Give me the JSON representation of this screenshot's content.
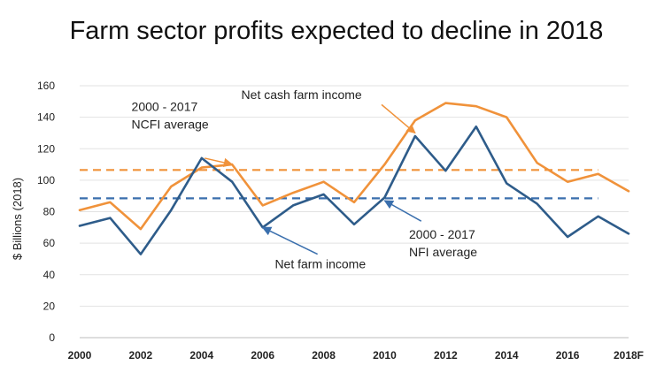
{
  "chart_data": {
    "type": "line",
    "title": "Farm sector profits expected to decline in 2018",
    "ylabel": "$ Billions (2018)",
    "xlabel": "",
    "ylim": [
      0,
      160
    ],
    "yticks": [
      0,
      20,
      40,
      60,
      80,
      100,
      120,
      140,
      160
    ],
    "x": [
      2000,
      2001,
      2002,
      2003,
      2004,
      2005,
      2006,
      2007,
      2008,
      2009,
      2010,
      2011,
      2012,
      2013,
      2014,
      2015,
      2016,
      2017,
      2018
    ],
    "xtick_labels": [
      "2000",
      "2002",
      "2004",
      "2006",
      "2008",
      "2010",
      "2012",
      "2014",
      "2016",
      "2018F"
    ],
    "xtick_values": [
      2000,
      2002,
      2004,
      2006,
      2008,
      2010,
      2012,
      2014,
      2016,
      2018
    ],
    "grid": true,
    "series": [
      {
        "name": "Net cash farm income",
        "color": "#f0923a",
        "style": "solid",
        "values": [
          81,
          86,
          69,
          96,
          108,
          110,
          84,
          92,
          99,
          86,
          110,
          138,
          149,
          147,
          140,
          111,
          99,
          104,
          93
        ]
      },
      {
        "name": "Net farm income",
        "color": "#2e5c8a",
        "style": "solid",
        "values": [
          71,
          76,
          53,
          81,
          114,
          99,
          70,
          84,
          91,
          72,
          89,
          128,
          106,
          134,
          98,
          85,
          64,
          77,
          66
        ]
      }
    ],
    "averages": [
      {
        "label": "2000 - 2017 NCFI average",
        "value": 106.5,
        "color": "#f0923a",
        "style": "dashed"
      },
      {
        "label": "2000 - 2017 NFI average",
        "value": 88.5,
        "color": "#3a6fad",
        "style": "dashed"
      }
    ],
    "annotations": [
      {
        "lines": [
          "Net cash farm income"
        ],
        "arrow_to": [
          2011,
          130
        ],
        "color": "#f0923a"
      },
      {
        "lines": [
          "2000 - 2017",
          "NCFI average"
        ],
        "arrow_to": [
          2005,
          110
        ],
        "color": "#f0923a"
      },
      {
        "lines": [
          "Net farm income"
        ],
        "arrow_to": [
          2006,
          70
        ],
        "color": "#3a6fad"
      },
      {
        "lines": [
          "2000 - 2017",
          "NFI average"
        ],
        "arrow_to": [
          2010,
          87
        ],
        "color": "#3a6fad"
      }
    ]
  }
}
